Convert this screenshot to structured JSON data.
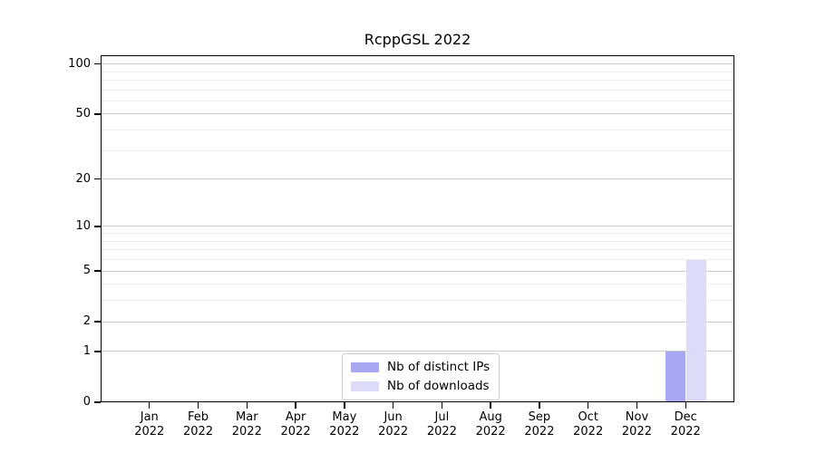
{
  "chart_data": {
    "type": "bar",
    "title": "RcppGSL 2022",
    "x_month_labels": [
      "Jan",
      "Feb",
      "Mar",
      "Apr",
      "May",
      "Jun",
      "Jul",
      "Aug",
      "Sep",
      "Oct",
      "Nov",
      "Dec"
    ],
    "x_year_label": "2022",
    "series": [
      {
        "name": "Nb of distinct IPs",
        "color": "#a7a7f4",
        "values": [
          0,
          0,
          0,
          0,
          0,
          0,
          0,
          0,
          0,
          0,
          0,
          1
        ]
      },
      {
        "name": "Nb of downloads",
        "color": "#dcdcf8",
        "values": [
          0,
          0,
          0,
          0,
          0,
          0,
          0,
          0,
          0,
          0,
          0,
          6
        ]
      }
    ],
    "y_scale": "log1p",
    "ylim": [
      0,
      100
    ],
    "y_ticks": [
      0,
      1,
      2,
      5,
      10,
      20,
      50,
      100
    ],
    "y_minor_ticks": [
      3,
      4,
      6,
      7,
      8,
      9,
      30,
      40,
      60,
      70,
      80,
      90
    ],
    "grid": "horizontal",
    "legend_position": "bottom-center",
    "colors": {
      "major_grid": "#cccccc",
      "minor_grid": "#ededed",
      "axis": "#000000",
      "background": "#ffffff"
    }
  }
}
